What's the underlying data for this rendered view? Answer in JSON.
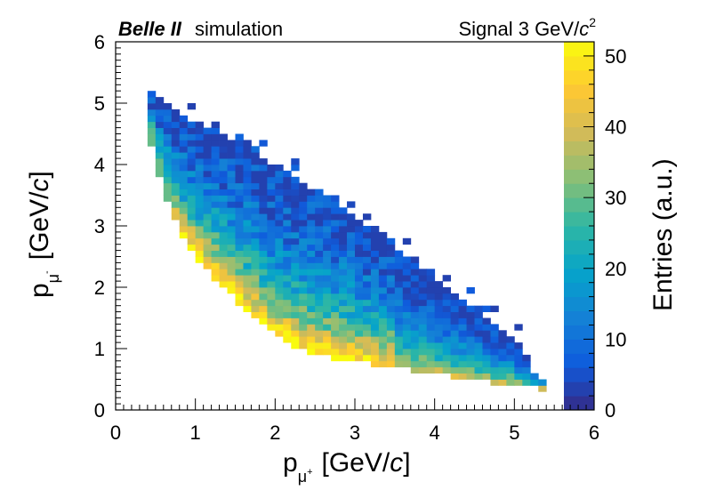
{
  "chart_data": {
    "type": "heatmap",
    "title_left_bold": "Belle II",
    "title_left_rest": "simulation",
    "title_right_base": "Signal 3 GeV/",
    "title_right_c": "c",
    "title_right_sup": "2",
    "xlabel_base": "p",
    "xlabel_sub": "μ",
    "xlabel_subsup": "+",
    "xlabel_units": "[GeV/",
    "xlabel_c": "c",
    "xlabel_close": "]",
    "ylabel_base": "p",
    "ylabel_sub": "μ",
    "ylabel_subsup": "-",
    "ylabel_units": "[GeV/",
    "ylabel_c": "c",
    "ylabel_close": "]",
    "zlabel": "Entries (a.u.)",
    "xlim": [
      0,
      6
    ],
    "ylim": [
      0,
      6
    ],
    "zlim": [
      0,
      52
    ],
    "x_ticks": [
      "0",
      "1",
      "2",
      "3",
      "4",
      "5",
      "6"
    ],
    "y_ticks": [
      "0",
      "1",
      "2",
      "3",
      "4",
      "5",
      "6"
    ],
    "z_ticks": [
      "0",
      "10",
      "20",
      "30",
      "40",
      "50"
    ],
    "bin_width": 0.1,
    "band": {
      "lower_edge": [
        [
          0.4,
          4.6
        ],
        [
          0.6,
          3.6
        ],
        [
          0.8,
          2.9
        ],
        [
          1.0,
          2.5
        ],
        [
          1.5,
          1.8
        ],
        [
          2.0,
          1.2
        ],
        [
          2.5,
          0.9
        ],
        [
          3.0,
          0.8
        ],
        [
          4.0,
          0.6
        ],
        [
          5.0,
          0.4
        ],
        [
          5.3,
          0.35
        ]
      ],
      "upper_edge": [
        [
          0.4,
          5.2
        ],
        [
          1.0,
          4.7
        ],
        [
          1.5,
          4.4
        ],
        [
          2.0,
          4.0
        ],
        [
          2.5,
          3.6
        ],
        [
          3.0,
          3.2
        ],
        [
          3.5,
          2.7
        ],
        [
          4.0,
          2.1
        ],
        [
          4.5,
          1.7
        ],
        [
          5.0,
          1.2
        ],
        [
          5.3,
          0.5
        ]
      ],
      "saturated_region": "lower-left edge, x 0.7-3.5, y 0.9-3.3"
    },
    "colormap": [
      "#352a87",
      "#0f5cdd",
      "#1481d6",
      "#06a4ca",
      "#2eb7a4",
      "#87bf77",
      "#d1bb59",
      "#fec832",
      "#f9fb0e"
    ]
  }
}
